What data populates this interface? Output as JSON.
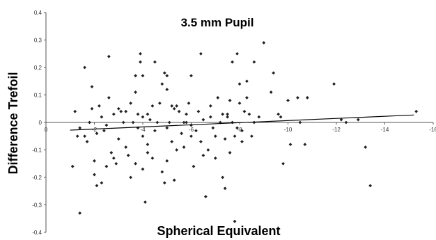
{
  "chart_data": {
    "type": "scatter",
    "title": "3.5 mm Pupil",
    "xlabel": "Spherical Equivalent",
    "ylabel": "Difference Trefoil",
    "xlim": [
      0,
      -16
    ],
    "ylim": [
      -0.4,
      0.4
    ],
    "x_ticks": [
      "0",
      "-2",
      "-4",
      "-6",
      "-8",
      "-10",
      "-12",
      "-14",
      "-16"
    ],
    "y_ticks": [
      "0,4",
      "0,3",
      "0,2",
      "0,1",
      "0",
      "-0,1",
      "-0,2",
      "-0,3",
      "-0,4"
    ],
    "grid": false,
    "legend": "none",
    "marker_color": "#222222",
    "trendline": {
      "x": [
        -1.0,
        -15.2
      ],
      "y": [
        -0.028,
        0.027
      ],
      "color": "#000000"
    },
    "points": [
      [
        -1.1,
        -0.16
      ],
      [
        -1.2,
        0.04
      ],
      [
        -1.3,
        -0.05
      ],
      [
        -1.4,
        -0.33
      ],
      [
        -1.4,
        -0.02
      ],
      [
        -1.6,
        0.2
      ],
      [
        -1.6,
        -0.05
      ],
      [
        -1.7,
        -0.07
      ],
      [
        -1.8,
        0.0
      ],
      [
        -1.9,
        0.13
      ],
      [
        -1.9,
        0.05
      ],
      [
        -2.0,
        -0.14
      ],
      [
        -2.0,
        -0.19
      ],
      [
        -2.1,
        -0.23
      ],
      [
        -2.1,
        -0.04
      ],
      [
        -2.2,
        0.06
      ],
      [
        -2.3,
        -0.22
      ],
      [
        -2.3,
        0.02
      ],
      [
        -2.4,
        -0.03
      ],
      [
        -2.5,
        -0.16
      ],
      [
        -2.5,
        -0.01
      ],
      [
        -2.6,
        0.24
      ],
      [
        -2.6,
        0.09
      ],
      [
        -2.7,
        -0.11
      ],
      [
        -2.8,
        -0.13
      ],
      [
        -2.8,
        0.03
      ],
      [
        -2.9,
        -0.15
      ],
      [
        -3.0,
        0.05
      ],
      [
        -3.0,
        -0.06
      ],
      [
        -3.1,
        0.04
      ],
      [
        -3.2,
        0.0
      ],
      [
        -3.3,
        0.04
      ],
      [
        -3.3,
        -0.09
      ],
      [
        -3.4,
        -0.12
      ],
      [
        -3.5,
        0.07
      ],
      [
        -3.5,
        -0.2
      ],
      [
        -3.6,
        0.0
      ],
      [
        -3.7,
        0.17
      ],
      [
        -3.7,
        -0.15
      ],
      [
        -3.7,
        0.11
      ],
      [
        -3.8,
        0.03
      ],
      [
        -3.8,
        -0.02
      ],
      [
        -3.9,
        0.25
      ],
      [
        -3.9,
        0.22
      ],
      [
        -4.0,
        0.17
      ],
      [
        -4.0,
        0.02
      ],
      [
        -4.0,
        -0.05
      ],
      [
        -4.0,
        -0.17
      ],
      [
        -4.1,
        -0.29
      ],
      [
        -4.2,
        0.03
      ],
      [
        -4.2,
        -0.08
      ],
      [
        -4.2,
        -0.11
      ],
      [
        -4.3,
        0.01
      ],
      [
        -4.4,
        -0.13
      ],
      [
        -4.4,
        0.06
      ],
      [
        -4.5,
        0.22
      ],
      [
        -4.5,
        -0.03
      ],
      [
        -4.6,
        0.0
      ],
      [
        -4.7,
        0.07
      ],
      [
        -4.8,
        -0.18
      ],
      [
        -4.8,
        0.14
      ],
      [
        -4.9,
        0.18
      ],
      [
        -4.9,
        -0.22
      ],
      [
        -5.0,
        0.17
      ],
      [
        -5.0,
        0.12
      ],
      [
        -5.0,
        -0.02
      ],
      [
        -5.0,
        -0.14
      ],
      [
        -5.1,
        0.0
      ],
      [
        -5.2,
        0.06
      ],
      [
        -5.2,
        -0.07
      ],
      [
        -5.3,
        0.05
      ],
      [
        -5.3,
        -0.21
      ],
      [
        -5.4,
        0.06
      ],
      [
        -5.4,
        -0.1
      ],
      [
        -5.5,
        0.04
      ],
      [
        -5.6,
        -0.04
      ],
      [
        -5.7,
        0.0
      ],
      [
        -5.7,
        -0.09
      ],
      [
        -5.8,
        0.03
      ],
      [
        -5.8,
        0.0
      ],
      [
        -5.9,
        0.07
      ],
      [
        -6.0,
        0.17
      ],
      [
        -6.0,
        -0.01
      ],
      [
        -6.0,
        -0.05
      ],
      [
        -6.1,
        -0.16
      ],
      [
        -6.2,
        -0.03
      ],
      [
        -6.3,
        0.04
      ],
      [
        -6.4,
        0.25
      ],
      [
        -6.4,
        -0.07
      ],
      [
        -6.5,
        0.01
      ],
      [
        -6.5,
        -0.12
      ],
      [
        -6.6,
        -0.27
      ],
      [
        -6.7,
        -0.1
      ],
      [
        -6.8,
        0.02
      ],
      [
        -6.8,
        0.06
      ],
      [
        -6.9,
        -0.02
      ],
      [
        -7.0,
        -0.05
      ],
      [
        -7.0,
        -0.13
      ],
      [
        -7.1,
        0.09
      ],
      [
        -7.2,
        0.0
      ],
      [
        -7.3,
        -0.2
      ],
      [
        -7.3,
        0.03
      ],
      [
        -7.4,
        -0.06
      ],
      [
        -7.4,
        -0.24
      ],
      [
        -7.5,
        0.03
      ],
      [
        -7.5,
        0.02
      ],
      [
        -7.6,
        0.08
      ],
      [
        -7.6,
        -0.11
      ],
      [
        -7.7,
        0.0
      ],
      [
        -7.7,
        0.22
      ],
      [
        -7.8,
        -0.05
      ],
      [
        -7.8,
        -0.36
      ],
      [
        -7.9,
        0.25
      ],
      [
        -7.9,
        -0.02
      ],
      [
        -8.0,
        0.14
      ],
      [
        -8.0,
        0.07
      ],
      [
        -8.1,
        -0.07
      ],
      [
        -8.1,
        -0.03
      ],
      [
        -8.2,
        0.04
      ],
      [
        -8.3,
        0.15
      ],
      [
        -8.3,
        0.09
      ],
      [
        -8.4,
        0.03
      ],
      [
        -8.5,
        -0.05
      ],
      [
        -8.6,
        0.22
      ],
      [
        -8.6,
        0.0
      ],
      [
        -8.8,
        0.02
      ],
      [
        -9.0,
        0.29
      ],
      [
        -9.3,
        0.11
      ],
      [
        -9.4,
        0.18
      ],
      [
        -9.6,
        0.03
      ],
      [
        -9.7,
        0.02
      ],
      [
        -9.8,
        -0.15
      ],
      [
        -10.0,
        0.08
      ],
      [
        -10.1,
        -0.08
      ],
      [
        -10.4,
        0.09
      ],
      [
        -10.5,
        0.0
      ],
      [
        -10.7,
        -0.08
      ],
      [
        -10.8,
        0.09
      ],
      [
        -11.9,
        0.14
      ],
      [
        -12.2,
        0.01
      ],
      [
        -12.4,
        0.0
      ],
      [
        -12.9,
        0.01
      ],
      [
        -13.2,
        -0.09
      ],
      [
        -13.4,
        -0.23
      ],
      [
        -15.3,
        0.04
      ]
    ]
  }
}
